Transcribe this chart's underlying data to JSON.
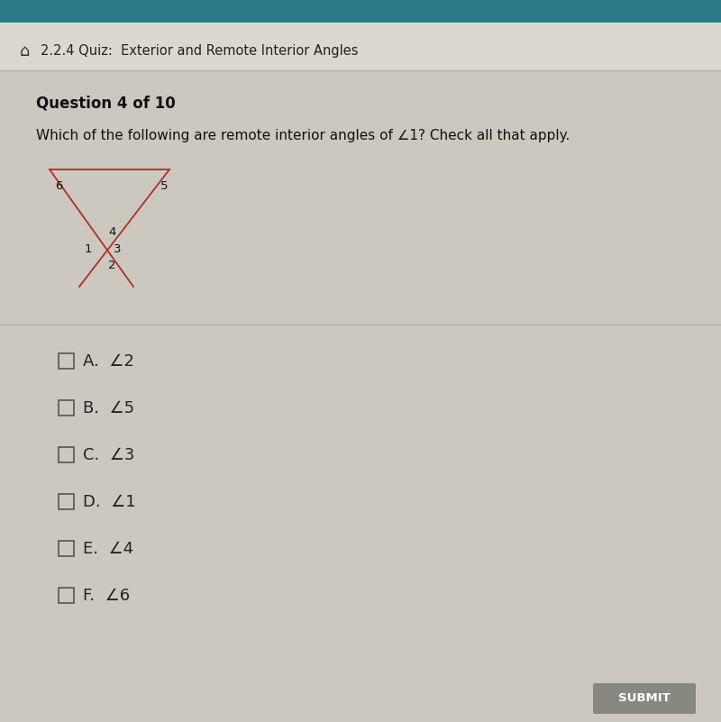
{
  "top_bar_color": "#2d7a8a",
  "header_bg": "#ddd8cf",
  "main_bg": "#ccc8bf",
  "header_text": "2.2.4 Quiz:  Exterior and Remote Interior Angles",
  "header_icon": "⌂",
  "question_label": "Question 4 of 10",
  "question_text": "Which of the following are remote interior angles of ∠1? Check all that apply.",
  "triangle_color": "#b03020",
  "answer_color": "#222222",
  "checkbox_color": "#555555",
  "submit_bg": "#888880",
  "submit_text": "SUBMIT",
  "submit_text_color": "#ffffff",
  "options": [
    "A.  ∠2",
    "B.  ∠5",
    "C.  ∠3",
    "D.  ∠1",
    "E.  ∠4",
    "F.  ∠6"
  ]
}
